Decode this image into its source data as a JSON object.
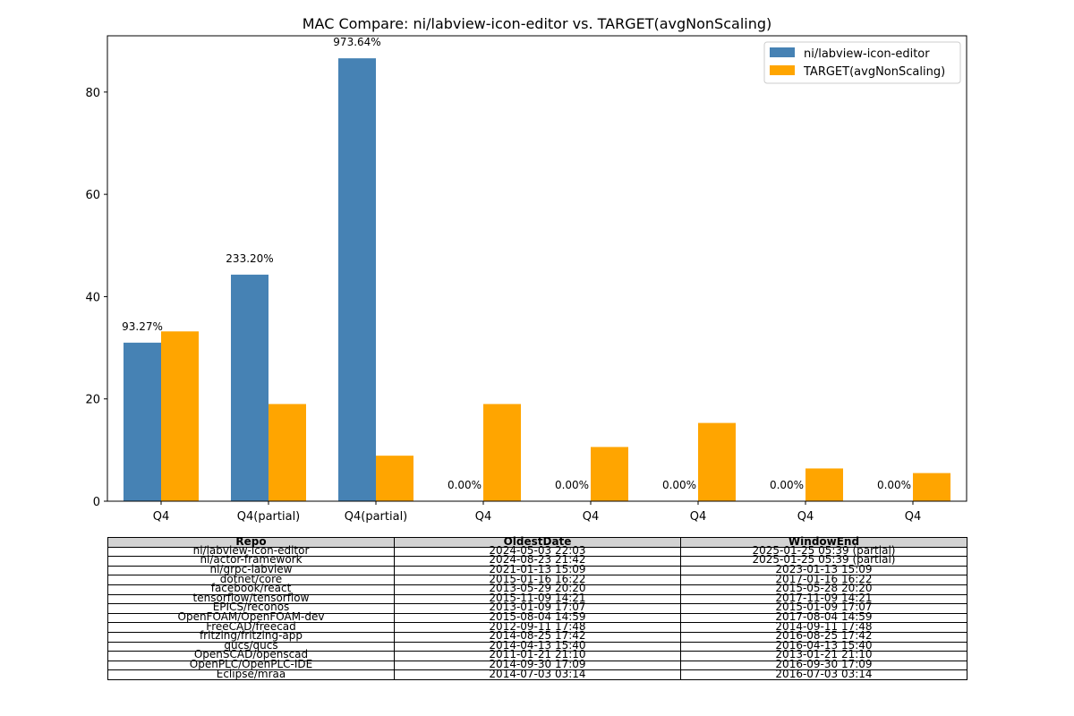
{
  "chart_data": {
    "type": "bar",
    "title": "MAC Compare: ni/labview-icon-editor vs. TARGET(avgNonScaling)",
    "xlabel": "",
    "ylabel": "",
    "categories": [
      "Q4",
      "Q4(partial)",
      "Q4(partial)",
      "Q4",
      "Q4",
      "Q4",
      "Q4",
      "Q4"
    ],
    "series": [
      {
        "name": "ni/labview-icon-editor",
        "color": "#4682b4",
        "values": [
          31.0,
          44.3,
          86.6,
          0,
          0,
          0,
          0,
          0
        ]
      },
      {
        "name": "TARGET(avgNonScaling)",
        "color": "#ffa500",
        "values": [
          33.2,
          19.0,
          8.9,
          19.0,
          10.6,
          15.3,
          6.4,
          5.5
        ]
      }
    ],
    "bar_labels": [
      "93.27%",
      "233.20%",
      "973.64%",
      "0.00%",
      "0.00%",
      "0.00%",
      "0.00%",
      "0.00%"
    ],
    "ylim": [
      0,
      91
    ],
    "yticks": [
      0,
      20,
      40,
      60,
      80
    ],
    "legend_position": "top-right",
    "grid": false
  },
  "table": {
    "headers": [
      "Repo",
      "OldestDate",
      "WindowEnd"
    ],
    "rows": [
      [
        "ni/labview-icon-editor",
        "2024-05-03 22:03",
        "2025-01-25 05:39 (partial)"
      ],
      [
        "ni/actor-framework",
        "2024-08-23 21:42",
        "2025-01-25 05:39 (partial)"
      ],
      [
        "ni/grpc-labview",
        "2021-01-13 15:09",
        "2023-01-13 15:09"
      ],
      [
        "dotnet/core",
        "2015-01-16 16:22",
        "2017-01-16 16:22"
      ],
      [
        "facebook/react",
        "2013-05-29 20:20",
        "2015-05-28 20:20"
      ],
      [
        "tensorflow/tensorflow",
        "2015-11-09 14:21",
        "2017-11-09 14:21"
      ],
      [
        "EPICS/reconos",
        "2013-01-09 17:07",
        "2015-01-09 17:07"
      ],
      [
        "OpenFOAM/OpenFOAM-dev",
        "2015-08-04 14:59",
        "2017-08-04 14:59"
      ],
      [
        "FreeCAD/freecad",
        "2012-09-11 17:48",
        "2014-09-11 17:48"
      ],
      [
        "fritzing/fritzing-app",
        "2014-08-25 17:42",
        "2016-08-25 17:42"
      ],
      [
        "qucs/qucs",
        "2014-04-13 15:40",
        "2016-04-13 15:40"
      ],
      [
        "OpenSCAD/openscad",
        "2011-01-21 21:10",
        "2013-01-21 21:10"
      ],
      [
        "OpenPLC/OpenPLC-IDE",
        "2014-09-30 17:09",
        "2016-09-30 17:09"
      ],
      [
        "Eclipse/mraa",
        "2014-07-03 03:14",
        "2016-07-03 03:14"
      ]
    ]
  }
}
